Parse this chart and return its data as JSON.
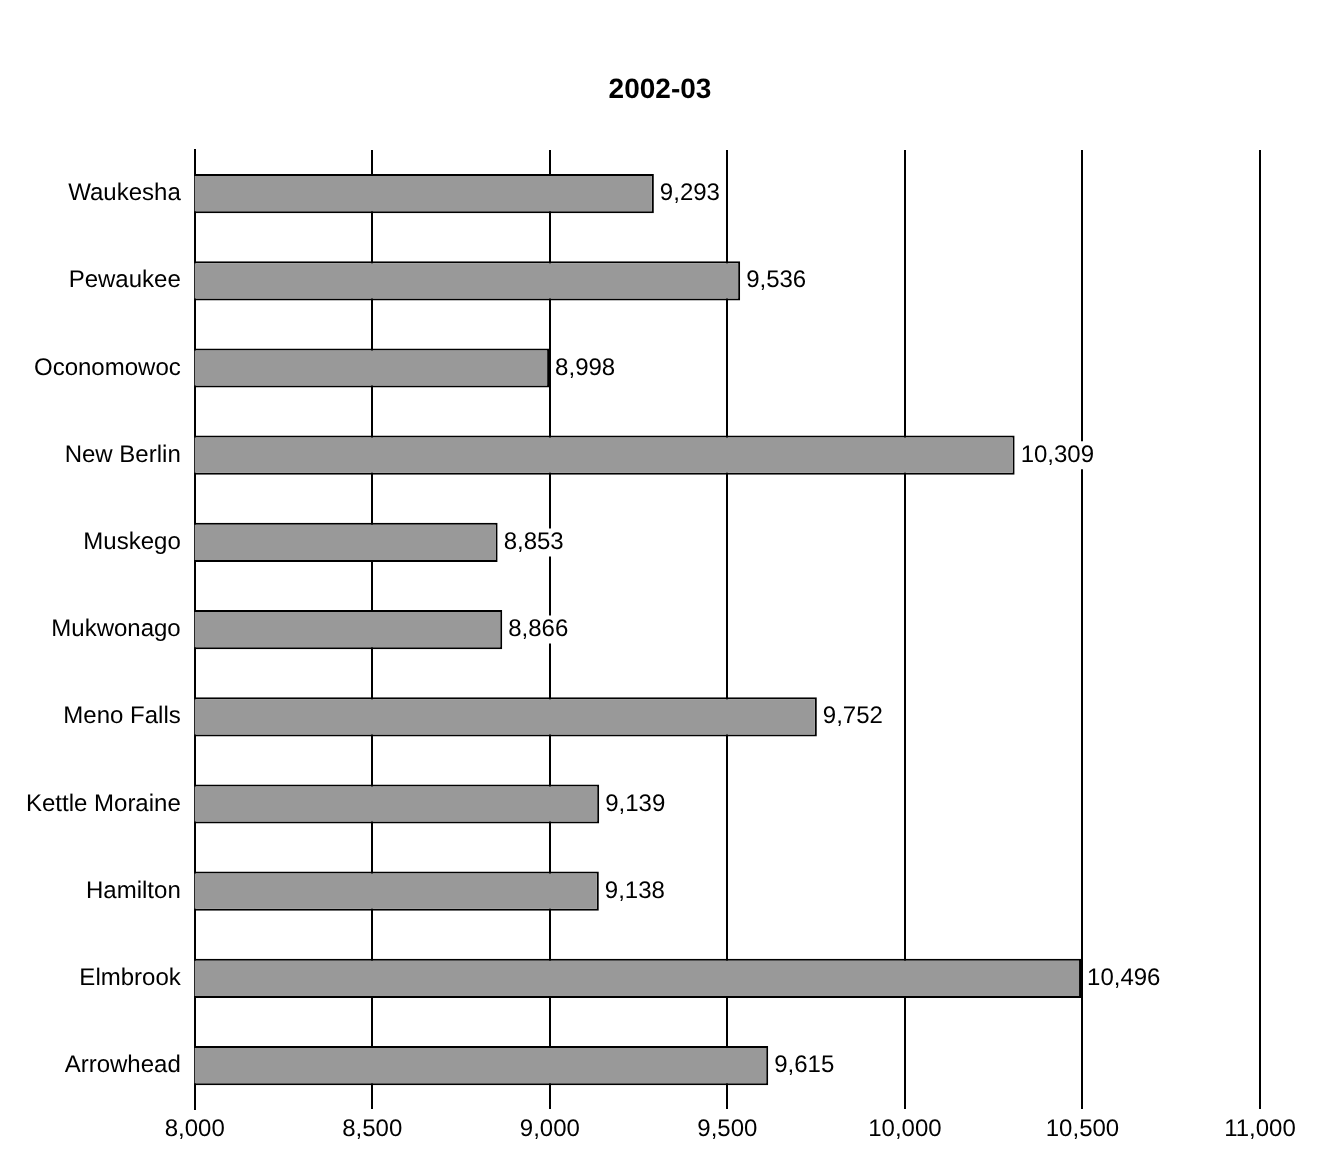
{
  "chart_data": {
    "type": "bar",
    "orientation": "horizontal",
    "title": "2002-03",
    "categories": [
      "Waukesha",
      "Pewaukee",
      "Oconomowoc",
      "New Berlin",
      "Muskego",
      "Mukwonago",
      "Meno Falls",
      "Kettle Moraine",
      "Hamilton",
      "Elmbrook",
      "Arrowhead"
    ],
    "values": [
      9293,
      9536,
      8998,
      10309,
      8853,
      8866,
      9752,
      9139,
      9138,
      10496,
      9615
    ],
    "color": "#999999",
    "xlim": [
      8000,
      11000
    ],
    "xticks": [
      {
        "value": 8000,
        "label": "8,000"
      },
      {
        "value": 8500,
        "label": "8,500"
      },
      {
        "value": 9000,
        "label": "9,000"
      },
      {
        "value": 9500,
        "label": "9,500"
      },
      {
        "value": 10000,
        "label": "10,000"
      },
      {
        "value": 10500,
        "label": "10,500"
      },
      {
        "value": 11000,
        "label": "11,000"
      }
    ],
    "value_labels": [
      "9,293",
      "9,536",
      "8,998",
      "10,309",
      "8,853",
      "8,866",
      "9,752",
      "9,139",
      "9,138",
      "10,496",
      "9,615"
    ],
    "grid": "x"
  }
}
